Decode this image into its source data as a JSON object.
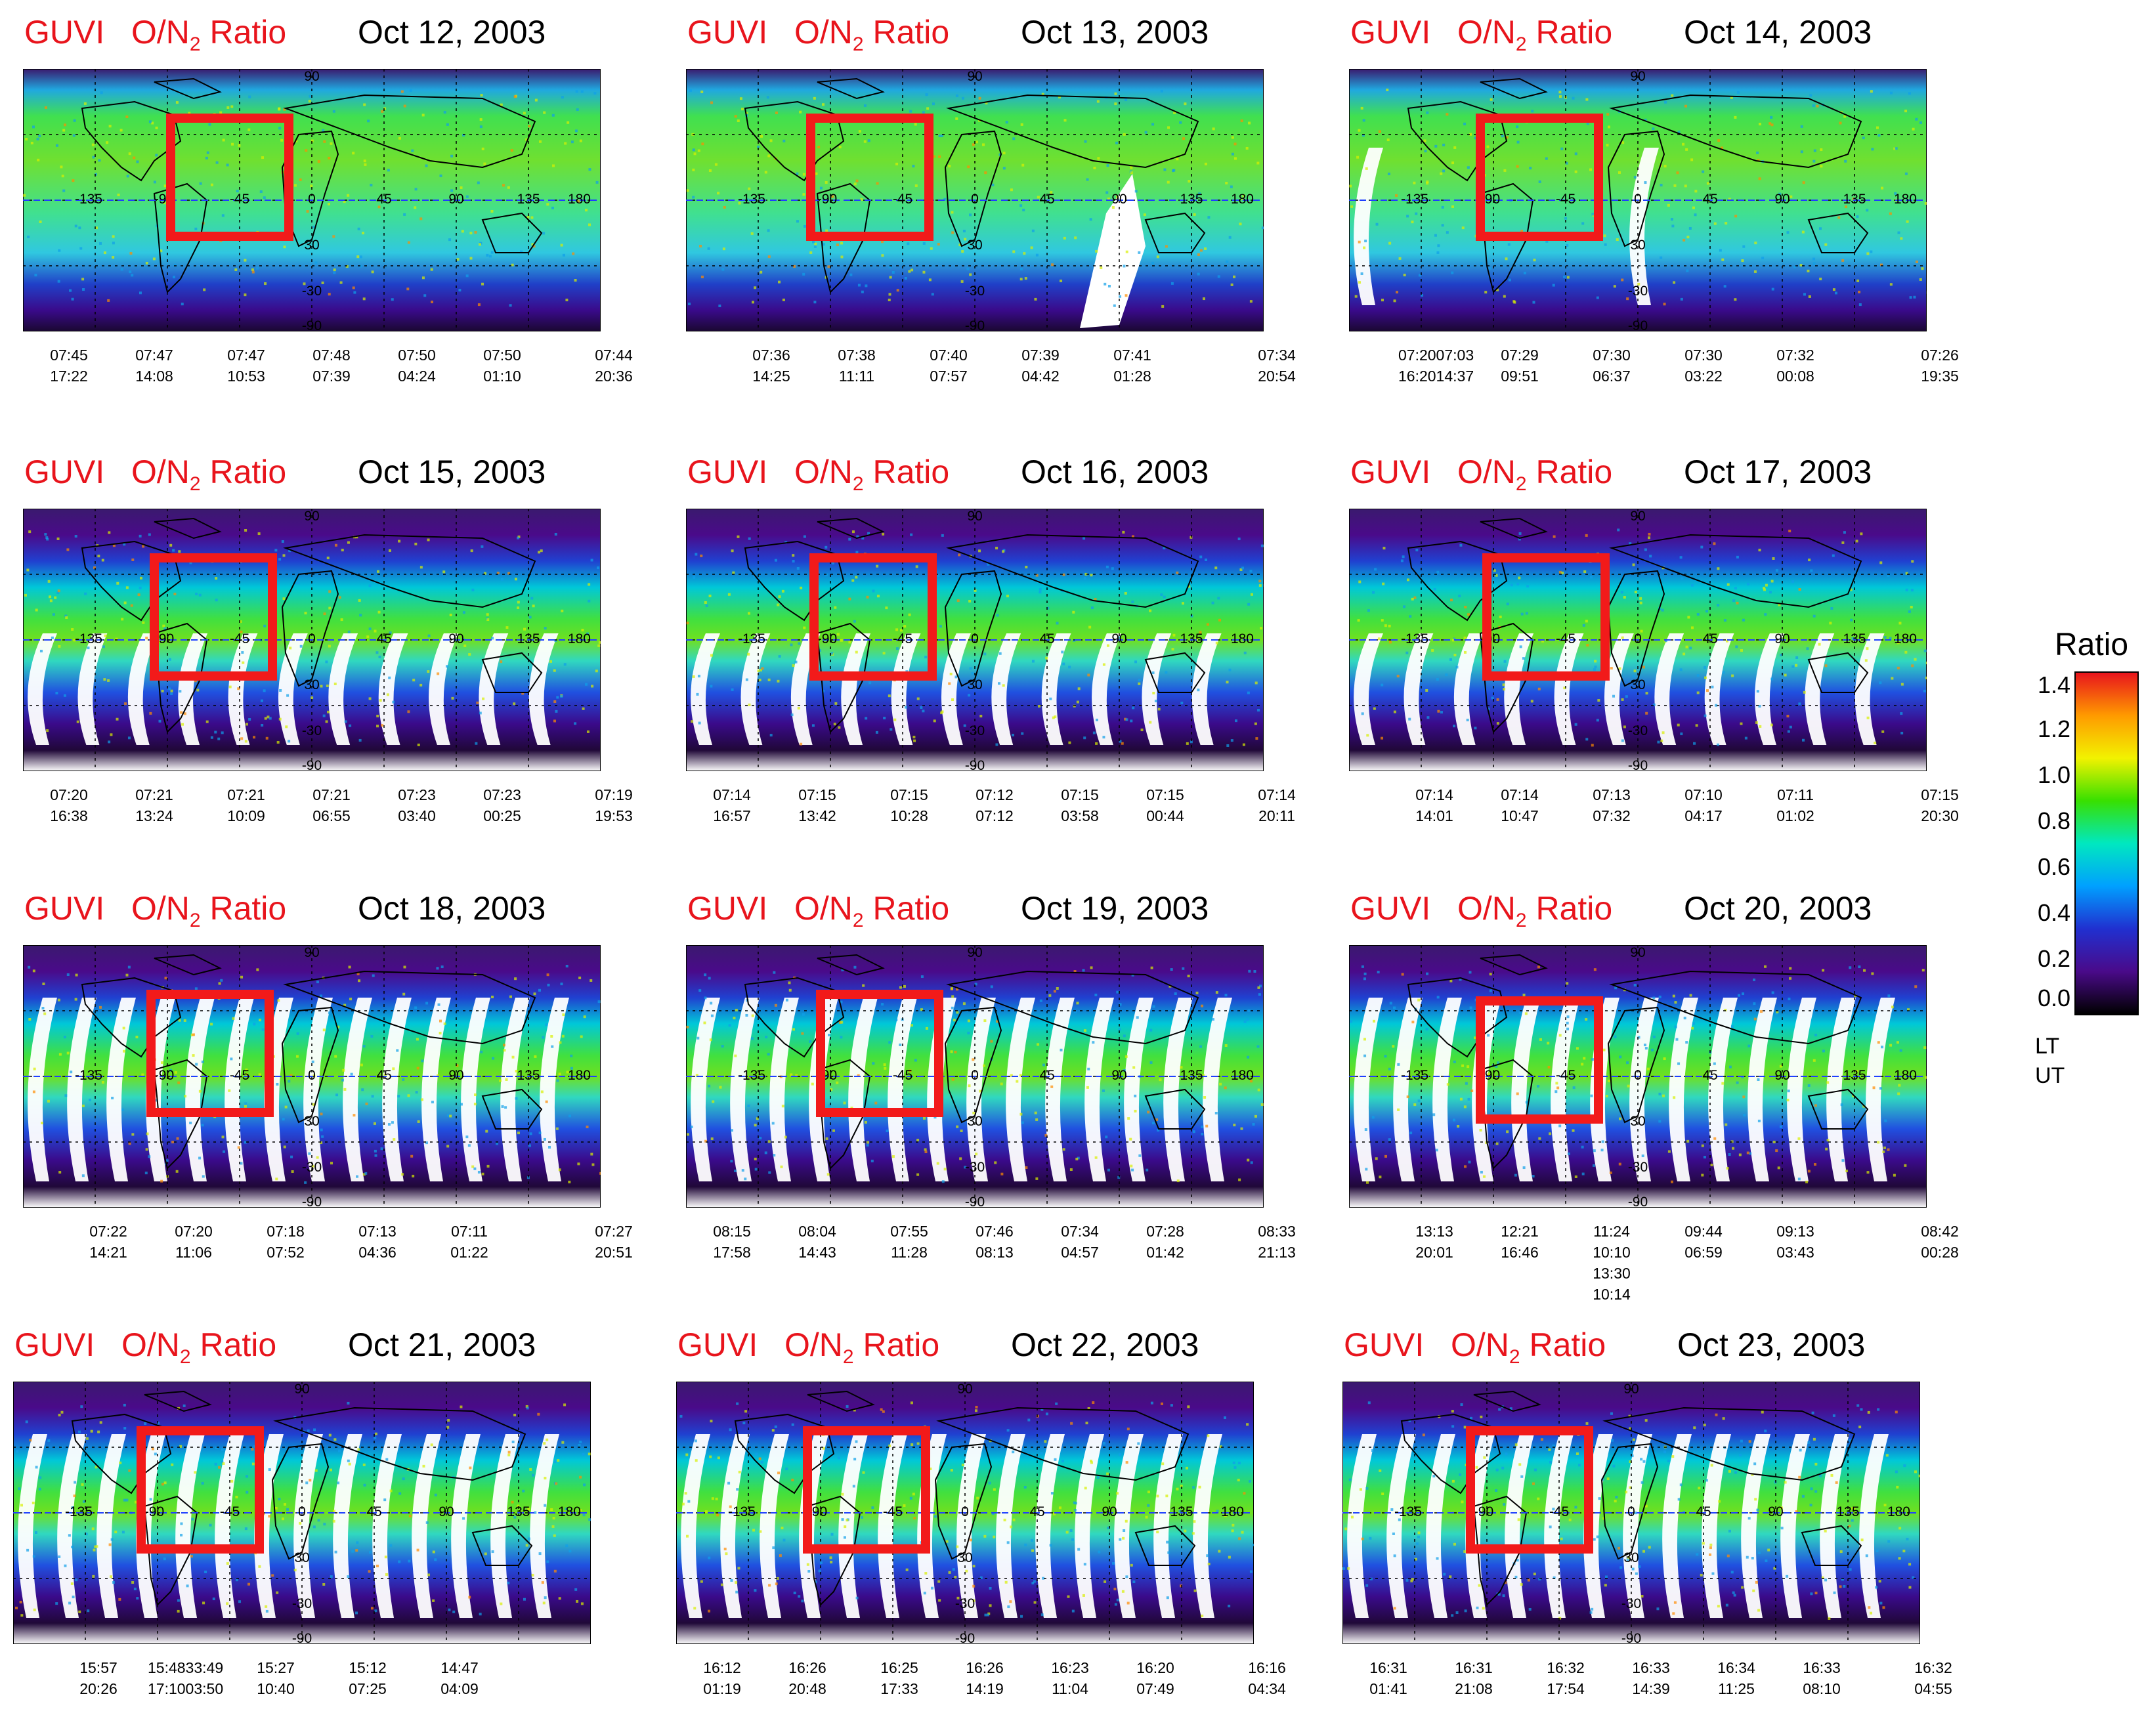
{
  "title_prefix": "GUVI",
  "title_quantity_main": "O/N",
  "title_quantity_sub": "2",
  "title_quantity_suffix": " Ratio",
  "map_labels": {
    "lat_top": "90",
    "lat_bottom": "-90",
    "lon_left": "-135",
    "lon_mid1": "-90",
    "lon_mid2": "-45",
    "lon_zero": "0",
    "lon_45": "45",
    "lon_90": "90",
    "lon_135": "135",
    "lon_right": "180",
    "lat_30": "30",
    "lat_m30": "-30"
  },
  "panels": [
    {
      "date": "Oct 12,  2003",
      "lt": [
        "07:45",
        "07:47",
        "07:47",
        "07:48",
        "07:50",
        "07:50",
        "07:44"
      ],
      "ut": [
        "17:22",
        "14:08",
        "10:53",
        "07:39",
        "04:24",
        "01:10",
        "20:36"
      ]
    },
    {
      "date": "Oct 13,  2003",
      "lt": [
        "07:36",
        "07:38",
        "07:40",
        "07:39",
        "07:41",
        "07:34"
      ],
      "ut": [
        "14:25",
        "11:11",
        "07:57",
        "04:42",
        "01:28",
        "20:54"
      ]
    },
    {
      "date": "Oct 14,  2003",
      "lt": [
        "07:2007:03",
        "07:29",
        "07:30",
        "07:30",
        "07:32",
        "07:26"
      ],
      "ut": [
        "16:2014:37",
        "09:51",
        "06:37",
        "03:22",
        "00:08",
        "19:35"
      ]
    },
    {
      "date": "Oct 15,  2003",
      "lt": [
        "07:20",
        "07:21",
        "07:21",
        "07:21",
        "07:23",
        "07:23",
        "07:19"
      ],
      "ut": [
        "16:38",
        "13:24",
        "10:09",
        "06:55",
        "03:40",
        "00:25",
        "19:53"
      ]
    },
    {
      "date": "Oct 16,  2003",
      "lt": [
        "07:14",
        "07:15",
        "07:15",
        "07:12",
        "07:15",
        "07:15",
        "07:14"
      ],
      "ut": [
        "16:57",
        "13:42",
        "10:28",
        "07:12",
        "03:58",
        "00:44",
        "20:11"
      ]
    },
    {
      "date": "Oct 17,  2003",
      "lt": [
        "07:14",
        "07:14",
        "07:13",
        "07:10",
        "07:11",
        "07:15"
      ],
      "ut": [
        "14:01",
        "10:47",
        "07:32",
        "04:17",
        "01:02",
        "20:30"
      ]
    },
    {
      "date": "Oct 18,  2003",
      "lt": [
        "07:22",
        "07:20",
        "07:18",
        "07:13",
        "07:11",
        "07:27"
      ],
      "ut": [
        "14:21",
        "11:06",
        "07:52",
        "04:36",
        "01:22",
        "20:51"
      ]
    },
    {
      "date": "Oct 19,  2003",
      "lt": [
        "08:15",
        "08:04",
        "07:55",
        "07:46",
        "07:34",
        "07:28",
        "08:33"
      ],
      "ut": [
        "17:58",
        "14:43",
        "11:28",
        "08:13",
        "04:57",
        "01:42",
        "21:13"
      ]
    },
    {
      "date": "Oct 20,  2003",
      "lt": [
        "13:13",
        "12:21",
        "11:24 10:10",
        "09:44",
        "09:13",
        "08:42"
      ],
      "ut": [
        "20:01",
        "16:46",
        "13:30 10:14",
        "06:59",
        "03:43",
        "00:28"
      ]
    },
    {
      "date": "Oct 21,  2003",
      "lt": [
        "15:57",
        "15:4833:49",
        "15:27",
        "15:12",
        "14:47"
      ],
      "ut": [
        "20:26",
        "17:1003:50",
        "10:40",
        "07:25",
        "04:09"
      ]
    },
    {
      "date": "Oct 22,  2003",
      "lt": [
        "16:12",
        "16:26",
        "16:25",
        "16:26",
        "16:23",
        "16:20",
        "16:16"
      ],
      "ut": [
        "01:19",
        "20:48",
        "17:33",
        "14:19",
        "11:04",
        "07:49",
        "04:34"
      ]
    },
    {
      "date": "Oct 23,  2003",
      "lt": [
        "16:31",
        "16:31",
        "16:32",
        "16:33",
        "16:34",
        "16:33",
        "16:32"
      ],
      "ut": [
        "01:41",
        "21:08",
        "17:54",
        "14:39",
        "11:25",
        "08:10",
        "04:55"
      ]
    }
  ],
  "colorbar": {
    "title": "Ratio",
    "ticks": [
      "1.4",
      "1.2",
      "1.0",
      "0.8",
      "0.6",
      "0.4",
      "0.2",
      "0.0"
    ],
    "lt_label": "LT",
    "ut_label": "UT",
    "colors": [
      "#e8141c",
      "#ff9a00",
      "#f2f200",
      "#38e000",
      "#00e8c0",
      "#00a0ff",
      "#2030d0",
      "#4a0a8a",
      "#000000"
    ]
  },
  "box_color": "#f21a1a"
}
